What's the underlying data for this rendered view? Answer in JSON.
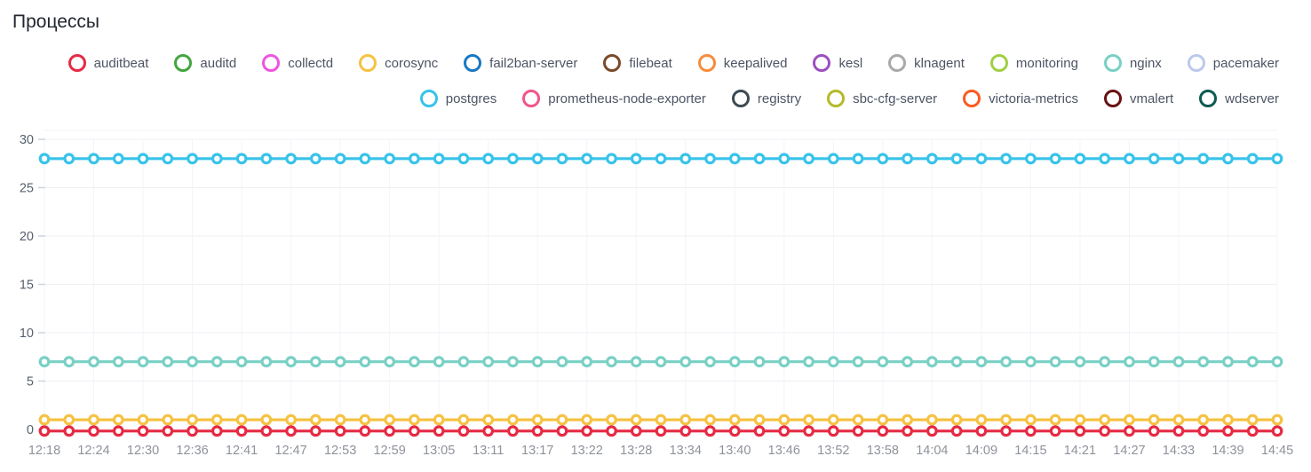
{
  "title": "Процессы",
  "legend": {
    "items": [
      {
        "label": "auditbeat",
        "color": "#e62a44"
      },
      {
        "label": "auditd",
        "color": "#43a53f"
      },
      {
        "label": "collectd",
        "color": "#ef55e0"
      },
      {
        "label": "corosync",
        "color": "#f5c242"
      },
      {
        "label": "fail2ban-server",
        "color": "#1a78c2"
      },
      {
        "label": "filebeat",
        "color": "#7a4b2a"
      },
      {
        "label": "keepalived",
        "color": "#f78c3e"
      },
      {
        "label": "kesl",
        "color": "#9c4fc0"
      },
      {
        "label": "klnagent",
        "color": "#a9a9ab"
      },
      {
        "label": "monitoring",
        "color": "#a2cf44"
      },
      {
        "label": "nginx",
        "color": "#79d0c5"
      },
      {
        "label": "pacemaker",
        "color": "#bcc9ec"
      },
      {
        "label": "postgres",
        "color": "#38c3ea"
      },
      {
        "label": "prometheus-node-exporter",
        "color": "#f2558c"
      },
      {
        "label": "registry",
        "color": "#3d4a52"
      },
      {
        "label": "sbc-cfg-server",
        "color": "#b5ba2a"
      },
      {
        "label": "victoria-metrics",
        "color": "#fb5a20"
      },
      {
        "label": "vmalert",
        "color": "#671112"
      },
      {
        "label": "wdserver",
        "color": "#0d5a50"
      }
    ]
  },
  "chart_data": {
    "type": "line",
    "title": "Процессы",
    "x_tick_labels": [
      "12:18",
      "12:24",
      "12:30",
      "12:36",
      "12:41",
      "12:47",
      "12:53",
      "12:59",
      "13:05",
      "13:11",
      "13:17",
      "13:22",
      "13:28",
      "13:34",
      "13:40",
      "13:46",
      "13:52",
      "13:58",
      "14:04",
      "14:09",
      "14:15",
      "14:21",
      "14:27",
      "14:33",
      "14:39",
      "14:45"
    ],
    "y_tick_labels": [
      "0",
      "5",
      "10",
      "15",
      "20",
      "25",
      "30"
    ],
    "y_ticks": [
      0,
      5,
      10,
      15,
      20,
      25,
      30
    ],
    "ylim": [
      0,
      30
    ],
    "points_per_series": 51,
    "grid": true,
    "legend_position": "top",
    "series": [
      {
        "name": "postgres",
        "color": "#38c3ea",
        "value": 28
      },
      {
        "name": "nginx",
        "color": "#79d0c5",
        "value": 7
      },
      {
        "name": "corosync",
        "color": "#f5c242",
        "value": 1
      },
      {
        "name": "auditbeat",
        "color": "#e62a44",
        "value": 0
      }
    ]
  }
}
